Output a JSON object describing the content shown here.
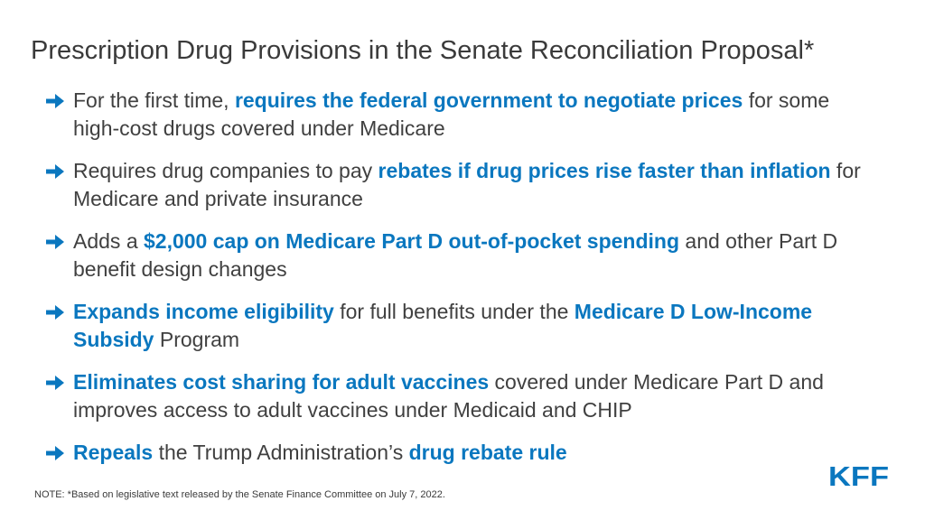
{
  "title": "Prescription Drug Provisions in the Senate Reconciliation Proposal*",
  "colors": {
    "highlight": "#0a77bf",
    "body_text": "#404040",
    "arrow": "#0a77bf",
    "logo": "#0a77bf"
  },
  "bullets": [
    {
      "parts": [
        {
          "text": "For the first time, "
        },
        {
          "text": "requires the federal government to negotiate prices",
          "hl": true
        },
        {
          "text": " for some high-cost drugs covered under Medicare"
        }
      ]
    },
    {
      "parts": [
        {
          "text": "Requires drug companies to pay "
        },
        {
          "text": "rebates if drug prices rise faster than inflation",
          "hl": true
        },
        {
          "text": " for Medicare and private insurance"
        }
      ]
    },
    {
      "parts": [
        {
          "text": "Adds a "
        },
        {
          "text": "$2,000 cap on Medicare Part D out-of-pocket spending",
          "hl": true
        },
        {
          "text": " and other Part D benefit design changes"
        }
      ]
    },
    {
      "parts": [
        {
          "text": "Expands income eligibility",
          "hl": true
        },
        {
          "text": " for full benefits under the "
        },
        {
          "text": "Medicare D Low-Income Subsidy",
          "hl": true
        },
        {
          "text": " Program"
        }
      ]
    },
    {
      "parts": [
        {
          "text": "Eliminates cost sharing for adult vaccines",
          "hl": true
        },
        {
          "text": " covered under Medicare Part D and improves access to adult vaccines under Medicaid and CHIP"
        }
      ]
    },
    {
      "parts": [
        {
          "text": "Repeals",
          "hl": true
        },
        {
          "text": " the Trump Administration’s "
        },
        {
          "text": "drug rebate rule",
          "hl": true
        }
      ]
    }
  ],
  "note": "NOTE: *Based on legislative text released by the Senate Finance Committee on July 7, 2022.",
  "logo": {
    "text": "KFF",
    "icon": "kff-logo"
  }
}
